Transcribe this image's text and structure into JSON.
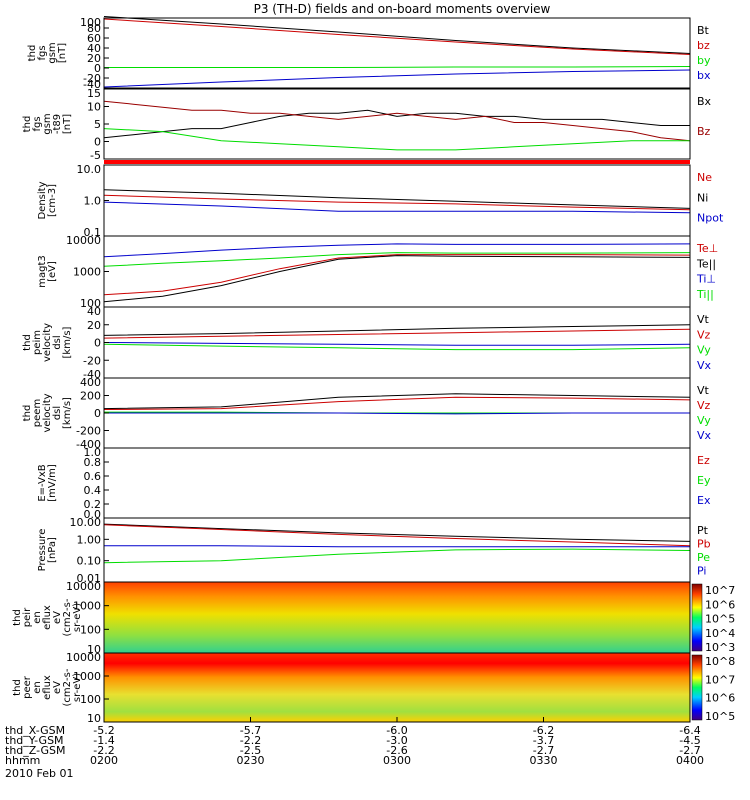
{
  "title": "P3 (TH-D) fields and on-board moments overview",
  "colors": {
    "black": "#000000",
    "red": "#cc0000",
    "green": "#00dd00",
    "blue": "#0000cc",
    "darkred": "#990000"
  },
  "chart_data": [
    {
      "id": "fgs_gsm",
      "type": "line",
      "ylabel": [
        "thd",
        "fgs",
        "gsm",
        "[nT]"
      ],
      "yticks": [
        "100",
        "80",
        "60",
        "40",
        "20",
        "0",
        "-20",
        "-40"
      ],
      "yrange": [
        -40,
        100
      ],
      "legend": [
        {
          "label": "Bt",
          "color": "#000000"
        },
        {
          "label": "bz",
          "color": "#cc0000"
        },
        {
          "label": "by",
          "color": "#00dd00"
        },
        {
          "label": "bx",
          "color": "#0000cc"
        }
      ],
      "series": [
        {
          "name": "Bt",
          "color": "#000000",
          "x": [
            0,
            0.2,
            0.4,
            0.6,
            0.8,
            1
          ],
          "y": [
            103,
            88,
            72,
            55,
            40,
            29
          ]
        },
        {
          "name": "bz",
          "color": "#cc0000",
          "x": [
            0,
            0.2,
            0.4,
            0.6,
            0.8,
            1
          ],
          "y": [
            98,
            83,
            67,
            52,
            38,
            27
          ]
        },
        {
          "name": "by",
          "color": "#00dd00",
          "x": [
            0,
            0.2,
            0.4,
            0.6,
            0.8,
            1
          ],
          "y": [
            1,
            1,
            1,
            2,
            2,
            3
          ]
        },
        {
          "name": "bx",
          "color": "#0000cc",
          "x": [
            0,
            0.2,
            0.4,
            0.6,
            0.8,
            1
          ],
          "y": [
            -38,
            -28,
            -19,
            -12,
            -7,
            -4
          ]
        }
      ]
    },
    {
      "id": "fgs_dsl",
      "type": "line",
      "ylabel": [
        "thd",
        "fgs",
        "gsm",
        "-t89",
        "[nT]"
      ],
      "yticks": [
        "15",
        "10",
        "5",
        "0",
        "-5"
      ],
      "yrange": [
        -8,
        15
      ],
      "legend": [
        {
          "label": "Bx",
          "color": "#000000"
        },
        {
          "label": "Bz",
          "color": "#990000"
        }
      ],
      "series": [
        {
          "name": "Bx",
          "color": "#000000",
          "x": [
            0,
            0.05,
            0.1,
            0.15,
            0.2,
            0.25,
            0.3,
            0.35,
            0.4,
            0.45,
            0.5,
            0.55,
            0.6,
            0.65,
            0.7,
            0.75,
            0.8,
            0.85,
            0.9,
            0.95,
            1
          ],
          "y": [
            -1,
            0,
            1,
            2,
            2,
            4,
            6,
            7,
            7,
            8,
            6,
            7,
            7,
            6,
            6,
            5,
            5,
            5,
            4,
            3,
            3
          ]
        },
        {
          "name": "Bz",
          "color": "#990000",
          "x": [
            0,
            0.05,
            0.1,
            0.15,
            0.2,
            0.25,
            0.3,
            0.35,
            0.4,
            0.45,
            0.5,
            0.55,
            0.6,
            0.65,
            0.7,
            0.75,
            0.8,
            0.85,
            0.9,
            0.95,
            1
          ],
          "y": [
            11,
            10,
            9,
            8,
            8,
            7,
            7,
            6,
            5,
            6,
            7,
            6,
            5,
            6,
            4,
            4,
            3,
            2,
            1,
            -1,
            -2
          ]
        },
        {
          "name": "",
          "color": "#00dd00",
          "x": [
            0,
            0.1,
            0.2,
            0.3,
            0.4,
            0.5,
            0.6,
            0.7,
            0.8,
            0.9,
            1
          ],
          "y": [
            2,
            1,
            -2,
            -3,
            -4,
            -5,
            -5,
            -4,
            -3,
            -2,
            -2
          ]
        }
      ]
    },
    {
      "id": "density",
      "type": "line",
      "scale": "log",
      "ylabel": [
        "Density",
        "[cm-3]"
      ],
      "yticks": [
        "10.0",
        "1.0",
        "0.1"
      ],
      "yrange": [
        0.1,
        10
      ],
      "legend": [
        {
          "label": "Ne",
          "color": "#cc0000"
        },
        {
          "label": "Ni",
          "color": "#000000"
        },
        {
          "label": "Npot",
          "color": "#0000cc"
        }
      ],
      "series": [
        {
          "name": "Ne",
          "color": "#cc0000",
          "x": [
            0,
            0.2,
            0.4,
            0.6,
            0.8,
            1
          ],
          "y": [
            1.4,
            1.1,
            0.9,
            0.8,
            0.65,
            0.55
          ]
        },
        {
          "name": "Ni",
          "color": "#000000",
          "x": [
            0,
            0.2,
            0.4,
            0.6,
            0.8,
            1
          ],
          "y": [
            2.0,
            1.6,
            1.2,
            0.95,
            0.75,
            0.6
          ]
        },
        {
          "name": "Npot",
          "color": "#0000cc",
          "x": [
            0,
            0.2,
            0.4,
            0.6,
            0.8,
            1
          ],
          "y": [
            0.9,
            0.7,
            0.5,
            0.5,
            0.5,
            0.45
          ]
        }
      ]
    },
    {
      "id": "temp",
      "type": "line",
      "scale": "log",
      "ylabel": [
        "magt3",
        "[eV]"
      ],
      "yticks": [
        "10000",
        "1000",
        "100"
      ],
      "yrange": [
        100,
        10000
      ],
      "legend": [
        {
          "label": "Te⊥",
          "color": "#cc0000"
        },
        {
          "label": "Te||",
          "color": "#000000"
        },
        {
          "label": "Ti⊥",
          "color": "#0000cc"
        },
        {
          "label": "Ti||",
          "color": "#00dd00"
        }
      ],
      "series": [
        {
          "name": "Te⊥",
          "color": "#cc0000",
          "x": [
            0,
            0.1,
            0.2,
            0.3,
            0.4,
            0.5,
            0.6,
            0.8,
            1
          ],
          "y": [
            220,
            280,
            500,
            1200,
            2400,
            3000,
            3000,
            3000,
            2900
          ]
        },
        {
          "name": "Te||",
          "color": "#000000",
          "x": [
            0,
            0.1,
            0.2,
            0.3,
            0.4,
            0.5,
            0.6,
            0.8,
            1
          ],
          "y": [
            140,
            200,
            400,
            1000,
            2200,
            2800,
            2700,
            2600,
            2500
          ]
        },
        {
          "name": "Ti⊥",
          "color": "#0000cc",
          "x": [
            0,
            0.1,
            0.2,
            0.3,
            0.4,
            0.5,
            0.6,
            0.8,
            1
          ],
          "y": [
            2600,
            3200,
            4000,
            4800,
            5500,
            6000,
            5800,
            5800,
            6000
          ]
        },
        {
          "name": "Ti||",
          "color": "#00dd00",
          "x": [
            0,
            0.1,
            0.2,
            0.3,
            0.4,
            0.5,
            0.6,
            0.8,
            1
          ],
          "y": [
            1400,
            1700,
            2000,
            2400,
            3000,
            3400,
            3300,
            3300,
            3400
          ]
        }
      ]
    },
    {
      "id": "peim_vel",
      "type": "line",
      "ylabel": [
        "thd",
        "peim",
        "velocity",
        "dsl",
        "[km/s]"
      ],
      "yticks": [
        "40",
        "20",
        "0",
        "-20",
        "-40"
      ],
      "yrange": [
        -40,
        40
      ],
      "legend": [
        {
          "label": "Vt",
          "color": "#000000"
        },
        {
          "label": "Vz",
          "color": "#cc0000"
        },
        {
          "label": "Vy",
          "color": "#00dd00"
        },
        {
          "label": "Vx",
          "color": "#0000cc"
        }
      ],
      "series": [
        {
          "name": "Vt",
          "color": "#000000",
          "x": [
            0,
            0.2,
            0.4,
            0.6,
            0.8,
            1
          ],
          "y": [
            8,
            10,
            13,
            16,
            18,
            20
          ]
        },
        {
          "name": "Vz",
          "color": "#cc0000",
          "x": [
            0,
            0.2,
            0.4,
            0.6,
            0.8,
            1
          ],
          "y": [
            5,
            7,
            9,
            11,
            13,
            15
          ]
        },
        {
          "name": "Vy",
          "color": "#00dd00",
          "x": [
            0,
            0.2,
            0.4,
            0.6,
            0.8,
            1
          ],
          "y": [
            -2,
            -4,
            -6,
            -8,
            -8,
            -6
          ]
        },
        {
          "name": "Vx",
          "color": "#0000cc",
          "x": [
            0,
            0.2,
            0.4,
            0.6,
            0.8,
            1
          ],
          "y": [
            0,
            -1,
            -2,
            -3,
            -3,
            -2
          ]
        }
      ]
    },
    {
      "id": "peem_vel",
      "type": "line",
      "ylabel": [
        "thd",
        "peem",
        "velocity",
        "dsl",
        "[km/s]"
      ],
      "yticks": [
        "400",
        "200",
        "0",
        "-200",
        "-400"
      ],
      "yrange": [
        -400,
        400
      ],
      "legend": [
        {
          "label": "Vt",
          "color": "#000000"
        },
        {
          "label": "Vz",
          "color": "#cc0000"
        },
        {
          "label": "Vy",
          "color": "#00dd00"
        },
        {
          "label": "Vx",
          "color": "#0000cc"
        }
      ],
      "series": [
        {
          "name": "Vt",
          "color": "#000000",
          "x": [
            0,
            0.2,
            0.4,
            0.6,
            0.8,
            1
          ],
          "y": [
            50,
            70,
            180,
            220,
            200,
            180
          ]
        },
        {
          "name": "Vz",
          "color": "#cc0000",
          "x": [
            0,
            0.2,
            0.4,
            0.6,
            0.8,
            1
          ],
          "y": [
            40,
            50,
            130,
            180,
            170,
            150
          ]
        },
        {
          "name": "Vy",
          "color": "#00dd00",
          "x": [
            0,
            0.2,
            0.4,
            0.6,
            0.8,
            1
          ],
          "y": [
            10,
            10,
            0,
            0,
            0,
            0
          ]
        },
        {
          "name": "Vx",
          "color": "#0000cc",
          "x": [
            0,
            0.2,
            0.4,
            0.6,
            0.8,
            1
          ],
          "y": [
            0,
            0,
            0,
            -10,
            0,
            0
          ]
        }
      ]
    },
    {
      "id": "efield",
      "type": "line",
      "ylabel": [
        "E=-VxB",
        "[mV/m]"
      ],
      "yticks": [
        "1.0",
        "0.8",
        "0.6",
        "0.4",
        "0.2",
        "0.0"
      ],
      "yrange": [
        0,
        1
      ],
      "legend": [
        {
          "label": "Ez",
          "color": "#cc0000"
        },
        {
          "label": "Ey",
          "color": "#00dd00"
        },
        {
          "label": "Ex",
          "color": "#0000cc"
        }
      ],
      "series": []
    },
    {
      "id": "pressure",
      "type": "line",
      "scale": "log",
      "ylabel": [
        "Pressure",
        "[nPa]"
      ],
      "yticks": [
        "10.00",
        "1.00",
        "0.10",
        "0.01"
      ],
      "yrange": [
        0.01,
        10
      ],
      "legend": [
        {
          "label": "Pt",
          "color": "#000000"
        },
        {
          "label": "Pb",
          "color": "#cc0000"
        },
        {
          "label": "Pe",
          "color": "#00dd00"
        },
        {
          "label": "Pi",
          "color": "#0000cc"
        }
      ],
      "series": [
        {
          "name": "Pt",
          "color": "#000000",
          "x": [
            0,
            0.2,
            0.4,
            0.6,
            0.8,
            1
          ],
          "y": [
            5.2,
            3.2,
            2.0,
            1.4,
            1.0,
            0.8
          ]
        },
        {
          "name": "Pb",
          "color": "#cc0000",
          "x": [
            0,
            0.2,
            0.4,
            0.6,
            0.8,
            1
          ],
          "y": [
            4.8,
            2.9,
            1.7,
            1.1,
            0.75,
            0.5
          ]
        },
        {
          "name": "Pe",
          "color": "#00dd00",
          "x": [
            0,
            0.2,
            0.4,
            0.6,
            0.8,
            1
          ],
          "y": [
            0.08,
            0.1,
            0.2,
            0.32,
            0.35,
            0.3
          ]
        },
        {
          "name": "Pi",
          "color": "#0000cc",
          "x": [
            0,
            0.2,
            0.4,
            0.6,
            0.8,
            1
          ],
          "y": [
            0.5,
            0.5,
            0.45,
            0.45,
            0.45,
            0.45
          ]
        }
      ]
    },
    {
      "id": "peir_spec",
      "type": "heatmap",
      "ylabel": [
        "thd",
        "peir",
        "en",
        "eflux",
        "eV",
        "(cm2-s-",
        "sr-eV)"
      ],
      "yticks": [
        "10000",
        "1000",
        "100",
        "10"
      ],
      "colorbar_ticks": [
        "10^7",
        "10^6",
        "10^5",
        "10^4",
        "10^3"
      ]
    },
    {
      "id": "peer_spec",
      "type": "heatmap",
      "ylabel": [
        "thd",
        "peer",
        "en",
        "eflux",
        "eV",
        "(cm2-s-",
        "sr-eV)"
      ],
      "yticks": [
        "10000",
        "1000",
        "100",
        "10"
      ],
      "colorbar_ticks": [
        "10^8",
        "10^7",
        "10^6",
        "10^5"
      ]
    }
  ],
  "xaxis": {
    "rows": [
      {
        "label": "thd_X-GSM",
        "values": [
          "-5.2",
          "-5.7",
          "-6.0",
          "-6.2",
          "-6.4"
        ]
      },
      {
        "label": "thd_Y-GSM",
        "values": [
          "-1.4",
          "-2.2",
          "-3.0",
          "-3.7",
          "-4.5"
        ]
      },
      {
        "label": "thd_Z-GSM",
        "values": [
          "-2.2",
          "-2.5",
          "-2.6",
          "-2.7",
          "-2.7"
        ]
      },
      {
        "label": "hhmm",
        "values": [
          "0200",
          "0230",
          "0300",
          "0330",
          "0400"
        ]
      }
    ],
    "date": "2010 Feb 01"
  }
}
